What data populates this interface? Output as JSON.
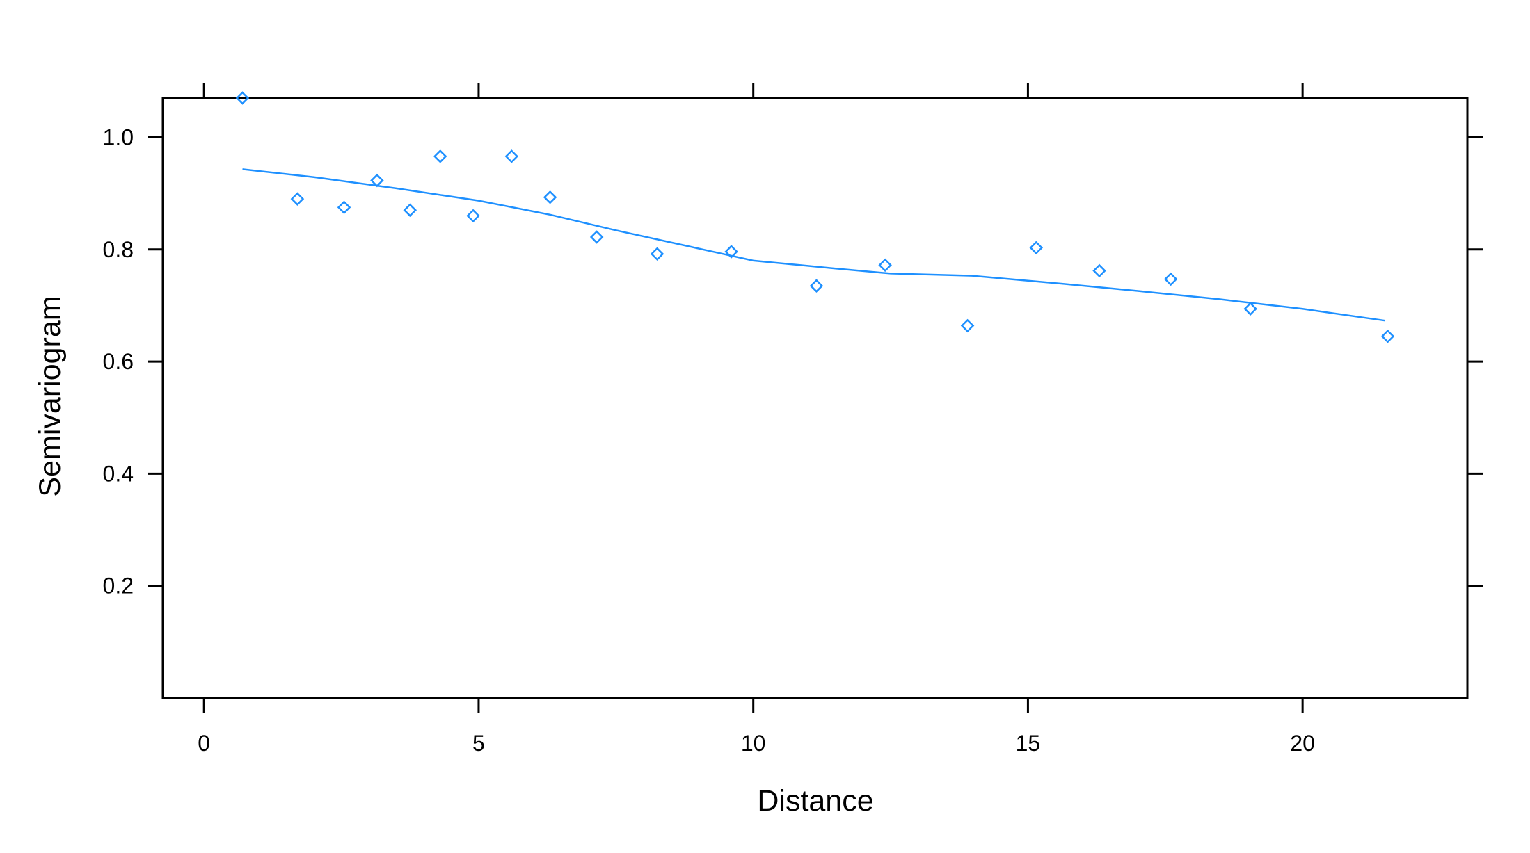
{
  "chart_data": {
    "type": "scatter",
    "title": "",
    "xlabel": "Distance",
    "ylabel": "Semivariogram",
    "xlim": [
      -0.75,
      23.0
    ],
    "ylim": [
      0.0,
      1.07
    ],
    "xticks": [
      0,
      5,
      10,
      15,
      20
    ],
    "xtick_labels": [
      "0",
      "5",
      "10",
      "15",
      "20"
    ],
    "yticks": [
      0.2,
      0.4,
      0.6,
      0.8,
      1.0
    ],
    "ytick_labels": [
      "0.2",
      "0.4",
      "0.6",
      "0.8",
      "1.0"
    ],
    "grid": false,
    "legend": "none",
    "colors": {
      "series": "#1E90FF",
      "axes": "#000000"
    },
    "series": [
      {
        "type": "scatter",
        "marker": "diamond",
        "x": [
          0.7,
          1.7,
          2.55,
          3.15,
          3.75,
          4.3,
          4.9,
          5.6,
          6.3,
          7.15,
          8.25,
          9.6,
          11.15,
          12.4,
          13.9,
          15.15,
          16.3,
          17.6,
          19.05,
          21.55
        ],
        "y": [
          1.07,
          0.89,
          0.875,
          0.923,
          0.87,
          0.966,
          0.86,
          0.966,
          0.893,
          0.822,
          0.792,
          0.796,
          0.735,
          0.772,
          0.664,
          0.803,
          0.762,
          0.747,
          0.694,
          0.645
        ]
      },
      {
        "type": "line",
        "x": [
          0.7,
          2.0,
          3.5,
          5.0,
          6.3,
          7.5,
          8.8,
          10.0,
          11.5,
          12.5,
          14.0,
          15.5,
          17.0,
          18.5,
          20.0,
          21.5
        ],
        "y": [
          0.943,
          0.929,
          0.909,
          0.887,
          0.862,
          0.834,
          0.806,
          0.78,
          0.766,
          0.757,
          0.753,
          0.74,
          0.726,
          0.711,
          0.694,
          0.673
        ]
      }
    ]
  }
}
